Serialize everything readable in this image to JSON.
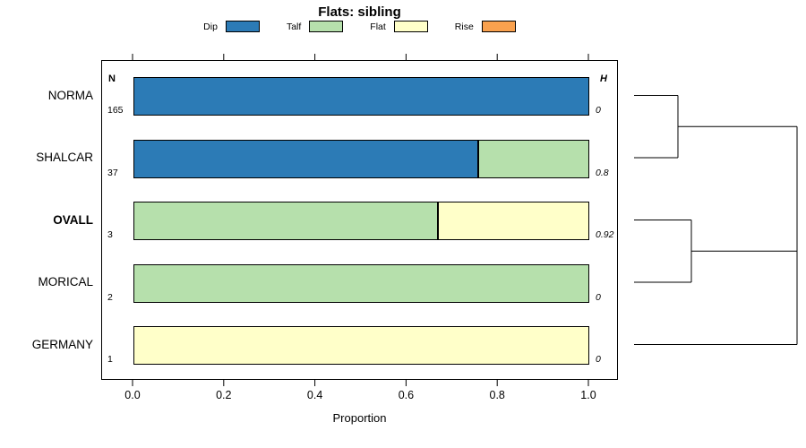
{
  "title": "Flats: sibling",
  "xlabel": "Proportion",
  "columns": {
    "n_header": "N",
    "h_header": "H"
  },
  "legend": [
    {
      "label": "Dip",
      "color": "#2C7BB6"
    },
    {
      "label": "Talf",
      "color": "#B6E0AC"
    },
    {
      "label": "Flat",
      "color": "#FFFFC9"
    },
    {
      "label": "Rise",
      "color": "#F9A14E"
    }
  ],
  "x_ticks": [
    "0.0",
    "0.2",
    "0.4",
    "0.6",
    "0.8",
    "1.0"
  ],
  "chart_data": {
    "type": "bar",
    "variant": "horizontal-stacked-proportion",
    "title": "Flats: sibling",
    "xlabel": "Proportion",
    "xlim": [
      0,
      1
    ],
    "grid": false,
    "legend_position": "top",
    "categories": [
      "NORMA",
      "SHALCAR",
      "OVALL",
      "MORICAL",
      "GERMANY"
    ],
    "bold_category": "OVALL",
    "n_values": [
      165,
      37,
      3,
      2,
      1
    ],
    "h_values": [
      "0",
      "0.8",
      "0.92",
      "0",
      "0"
    ],
    "series": [
      {
        "name": "Dip",
        "color": "#2C7BB6",
        "values": [
          1.0,
          0.757,
          0,
          0,
          0
        ]
      },
      {
        "name": "Talf",
        "color": "#B6E0AC",
        "values": [
          0,
          0.243,
          0.667,
          1.0,
          0
        ]
      },
      {
        "name": "Flat",
        "color": "#FFFFC9",
        "values": [
          0,
          0,
          0.333,
          0,
          1.0
        ]
      },
      {
        "name": "Rise",
        "color": "#F9A14E",
        "values": [
          0,
          0,
          0,
          0,
          0
        ]
      }
    ],
    "dendrogram": {
      "leaves": [
        "NORMA",
        "SHALCAR",
        "OVALL",
        "MORICAL",
        "GERMANY"
      ],
      "merges": [
        {
          "join": [
            "NORMA",
            "SHALCAR"
          ]
        },
        {
          "join": [
            "OVALL",
            "MORICAL"
          ]
        },
        {
          "join": [
            [
              "OVALL",
              "MORICAL"
            ],
            [
              "GERMANY"
            ]
          ]
        },
        {
          "join": [
            [
              "NORMA",
              "SHALCAR"
            ],
            [
              "OVALL",
              "MORICAL",
              "GERMANY"
            ]
          ]
        }
      ]
    }
  }
}
